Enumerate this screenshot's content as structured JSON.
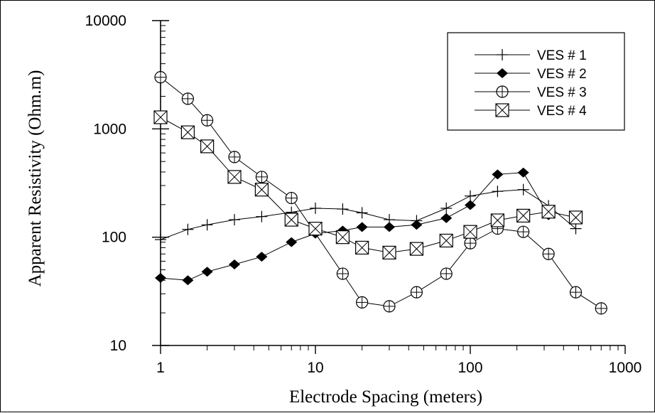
{
  "chart_data": {
    "type": "line",
    "title": "",
    "xlabel": "Electrode Spacing (meters)",
    "ylabel": "Apparent Resistivity (Ohm.m)",
    "xscale": "log",
    "yscale": "log",
    "xlim": [
      1,
      1000
    ],
    "ylim": [
      10,
      10000
    ],
    "x_ticks": [
      {
        "value": 1,
        "label": "1"
      },
      {
        "value": 10,
        "label": "10"
      },
      {
        "value": 100,
        "label": "100"
      },
      {
        "value": 1000,
        "label": "1000"
      }
    ],
    "y_ticks": [
      {
        "value": 10,
        "label": "10"
      },
      {
        "value": 100,
        "label": "100"
      },
      {
        "value": 1000,
        "label": "1000"
      },
      {
        "value": 10000,
        "label": "10000"
      }
    ],
    "grid": false,
    "legend_position": "top-right",
    "series": [
      {
        "name": "VES # 1",
        "marker": "plus",
        "x": [
          1,
          1.5,
          2,
          3,
          4.5,
          7,
          10,
          15,
          20,
          30,
          45,
          70,
          100,
          150,
          220,
          320,
          480
        ],
        "y": [
          95,
          118,
          130,
          145,
          155,
          170,
          185,
          182,
          168,
          145,
          142,
          185,
          240,
          265,
          275,
          195,
          120
        ]
      },
      {
        "name": "VES # 2",
        "marker": "filled-diamond",
        "x": [
          1,
          1.5,
          2,
          3,
          4.5,
          7,
          10,
          15,
          20,
          30,
          45,
          70,
          100,
          150,
          220,
          320
        ],
        "y": [
          42,
          40,
          48,
          56,
          66,
          90,
          108,
          115,
          124,
          124,
          130,
          150,
          198,
          380,
          395,
          160
        ]
      },
      {
        "name": "VES # 3",
        "marker": "circle-plus",
        "x": [
          1,
          1.5,
          2,
          3,
          4.5,
          7,
          15,
          20,
          30,
          45,
          70,
          100,
          150,
          220,
          320,
          480,
          700
        ],
        "y": [
          3000,
          1900,
          1200,
          550,
          360,
          230,
          46,
          25,
          23,
          31,
          46,
          88,
          120,
          112,
          70,
          31,
          22
        ]
      },
      {
        "name": "VES # 4",
        "marker": "boxed-x",
        "x": [
          1,
          1.5,
          2,
          3,
          4.5,
          7,
          10,
          15,
          20,
          30,
          45,
          70,
          100,
          150,
          220,
          320,
          480
        ],
        "y": [
          1280,
          930,
          690,
          360,
          275,
          145,
          120,
          100,
          80,
          72,
          78,
          93,
          112,
          143,
          158,
          172,
          152
        ]
      }
    ]
  }
}
